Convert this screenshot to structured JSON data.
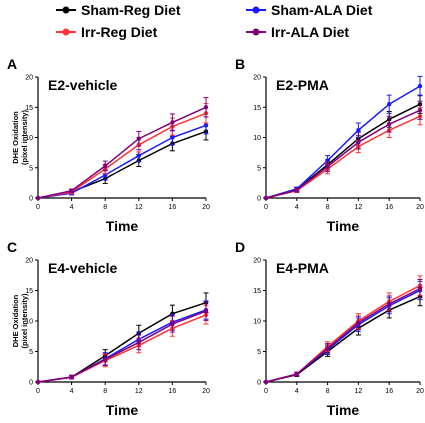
{
  "legend": [
    {
      "label": "Sham-Reg Diet",
      "color": "#000000"
    },
    {
      "label": "Sham-ALA Diet",
      "color": "#1a1aff"
    },
    {
      "label": "Irr-Reg Diet",
      "color": "#ff3333"
    },
    {
      "label": "Irr-ALA Diet",
      "color": "#800080"
    }
  ],
  "chart_data": [
    {
      "panel": "A",
      "type": "line",
      "title": "E2-vehicle",
      "xlabel": "Time",
      "ylabel": [
        "DHE Oxidation",
        "(pixel intensity)"
      ],
      "x": [
        0,
        4,
        8,
        12,
        16,
        20
      ],
      "xlim": [
        0,
        20
      ],
      "ylim": [
        0,
        20
      ],
      "xticks": [
        "0",
        "4",
        "8",
        "12",
        "16",
        "20"
      ],
      "yticks": [
        "0",
        "5",
        "10",
        "15",
        "20"
      ],
      "series": [
        {
          "name": "Sham-Reg Diet",
          "color": "#000000",
          "values": [
            0,
            1,
            3.2,
            6.2,
            9,
            11
          ],
          "errors": [
            0,
            0.3,
            0.8,
            1,
            1.2,
            1.4
          ]
        },
        {
          "name": "Sham-ALA Diet",
          "color": "#1a1aff",
          "values": [
            0,
            0.8,
            3.8,
            7,
            10,
            12
          ],
          "errors": [
            0,
            0.3,
            0.8,
            1,
            1.2,
            1.4
          ]
        },
        {
          "name": "Irr-Reg Diet",
          "color": "#ff3333",
          "values": [
            0,
            1,
            4.8,
            8.8,
            11.8,
            14
          ],
          "errors": [
            0,
            0.3,
            0.8,
            1.2,
            1.4,
            1.6
          ]
        },
        {
          "name": "Irr-ALA Diet",
          "color": "#800080",
          "values": [
            0,
            1.2,
            5.3,
            9.8,
            12.5,
            15
          ],
          "errors": [
            0,
            0.3,
            0.8,
            1.2,
            1.4,
            1.6
          ]
        }
      ]
    },
    {
      "panel": "B",
      "type": "line",
      "title": "E2-PMA",
      "xlabel": "Time",
      "ylabel": [],
      "x": [
        0,
        4,
        8,
        12,
        16,
        20
      ],
      "xlim": [
        0,
        20
      ],
      "ylim": [
        0,
        20
      ],
      "xticks": [
        "0",
        "4",
        "8",
        "12",
        "16",
        "20"
      ],
      "yticks": [
        "0",
        "5",
        "10",
        "15",
        "20"
      ],
      "series": [
        {
          "name": "Sham-Reg Diet",
          "color": "#000000",
          "values": [
            0,
            1.4,
            5.5,
            9.8,
            13,
            15.5
          ],
          "errors": [
            0,
            0.3,
            0.8,
            1.1,
            1.3,
            1.5
          ]
        },
        {
          "name": "Sham-ALA Diet",
          "color": "#1a1aff",
          "values": [
            0,
            1.5,
            6.2,
            11.2,
            15.5,
            18.5
          ],
          "errors": [
            0,
            0.3,
            0.8,
            1.2,
            1.5,
            1.6
          ]
        },
        {
          "name": "Irr-Reg Diet",
          "color": "#ff3333",
          "values": [
            0,
            1.2,
            4.8,
            8.5,
            11.2,
            13.5
          ],
          "errors": [
            0,
            0.3,
            0.8,
            1,
            1.2,
            1.4
          ]
        },
        {
          "name": "Irr-ALA Diet",
          "color": "#800080",
          "values": [
            0,
            1.3,
            5.2,
            9.2,
            12.2,
            14.5
          ],
          "errors": [
            0,
            0.3,
            0.8,
            1.1,
            1.3,
            1.5
          ]
        }
      ]
    },
    {
      "panel": "C",
      "type": "line",
      "title": "E4-vehicle",
      "xlabel": "Time",
      "ylabel": [
        "DHE Oxidation",
        "(pixel intensity)"
      ],
      "x": [
        0,
        4,
        8,
        12,
        16,
        20
      ],
      "xlim": [
        0,
        20
      ],
      "ylim": [
        0,
        20
      ],
      "xticks": [
        "0",
        "4",
        "8",
        "12",
        "16",
        "20"
      ],
      "yticks": [
        "0",
        "5",
        "10",
        "15",
        "20"
      ],
      "series": [
        {
          "name": "Sham-Reg Diet",
          "color": "#000000",
          "values": [
            0,
            0.8,
            4.3,
            8,
            11.2,
            13
          ],
          "errors": [
            0,
            0.3,
            1,
            1.3,
            1.4,
            1.6
          ]
        },
        {
          "name": "Sham-ALA Diet",
          "color": "#1a1aff",
          "values": [
            0,
            0.8,
            3.8,
            7,
            9.8,
            11.8
          ],
          "errors": [
            0,
            0.3,
            1,
            1.2,
            1.3,
            1.5
          ]
        },
        {
          "name": "Irr-Reg Diet",
          "color": "#ff3333",
          "values": [
            0,
            0.8,
            3.5,
            6,
            8.8,
            11
          ],
          "errors": [
            0,
            0.3,
            1,
            1.2,
            1.3,
            1.5
          ]
        },
        {
          "name": "Irr-ALA Diet",
          "color": "#800080",
          "values": [
            0,
            0.8,
            3.7,
            6.5,
            9.5,
            11.6
          ],
          "errors": [
            0,
            0.3,
            1,
            1.2,
            1.3,
            1.5
          ]
        }
      ]
    },
    {
      "panel": "D",
      "type": "line",
      "title": "E4-PMA",
      "xlabel": "Time",
      "ylabel": [],
      "x": [
        0,
        4,
        8,
        12,
        16,
        20
      ],
      "xlim": [
        0,
        20
      ],
      "ylim": [
        0,
        20
      ],
      "xticks": [
        "0",
        "4",
        "8",
        "12",
        "16",
        "20"
      ],
      "yticks": [
        "0",
        "5",
        "10",
        "15",
        "20"
      ],
      "series": [
        {
          "name": "Sham-Reg Diet",
          "color": "#000000",
          "values": [
            0,
            1.2,
            5,
            8.8,
            11.8,
            14
          ],
          "errors": [
            0,
            0.3,
            0.8,
            1.1,
            1.3,
            1.5
          ]
        },
        {
          "name": "Sham-ALA Diet",
          "color": "#1a1aff",
          "values": [
            0,
            1.3,
            5.3,
            9.4,
            12.5,
            15
          ],
          "errors": [
            0,
            0.3,
            0.8,
            1.1,
            1.3,
            1.5
          ]
        },
        {
          "name": "Irr-Reg Diet",
          "color": "#ff3333",
          "values": [
            0,
            1.3,
            5.8,
            10,
            13.2,
            15.8
          ],
          "errors": [
            0,
            0.3,
            0.8,
            1.2,
            1.4,
            1.6
          ]
        },
        {
          "name": "Irr-ALA Diet",
          "color": "#800080",
          "values": [
            0,
            1.3,
            5.5,
            9.7,
            12.8,
            15.3
          ],
          "errors": [
            0,
            0.3,
            0.8,
            1.1,
            1.3,
            1.5
          ]
        }
      ]
    }
  ]
}
